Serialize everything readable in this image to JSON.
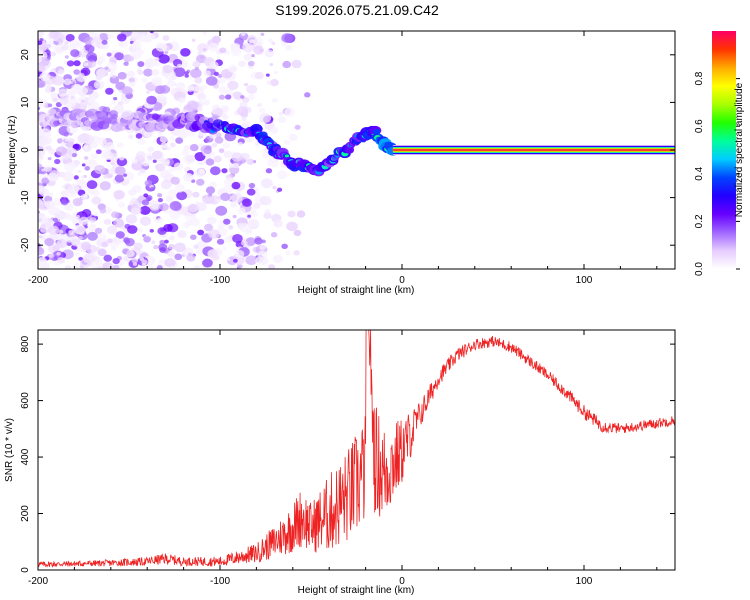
{
  "figure": {
    "title": "S199.2026.075.21.09.C42"
  },
  "chart_data": [
    {
      "type": "heatmap",
      "title": "S199.2026.075.21.09.C42",
      "xlabel": "Height of straight line (km)",
      "ylabel": "Frequency (Hz)",
      "xlim": [
        -200,
        150
      ],
      "ylim": [
        -25,
        25
      ],
      "x_ticks": [
        -200,
        -100,
        0,
        100
      ],
      "x_tick_labels": [
        "-200",
        "-100",
        "0",
        "100"
      ],
      "y_ticks": [
        -20,
        -10,
        0,
        10,
        20
      ],
      "y_tick_labels": [
        "-20",
        "-10",
        "0",
        "10",
        "20"
      ],
      "colorbar": {
        "label": "Normalized spectral amplitude",
        "range": [
          0,
          1
        ],
        "ticks": [
          0,
          0.2,
          0.4,
          0.6,
          0.8
        ],
        "tick_labels": [
          "0.0",
          "0.2",
          "0.4",
          "0.6",
          "0.8"
        ],
        "colormap": [
          "#ffffff",
          "#e6ccff",
          "#a066ff",
          "#6600ff",
          "#2200ff",
          "#0044ff",
          "#00ccff",
          "#00ff99",
          "#22ff00",
          "#aaff00",
          "#ffff00",
          "#ffaa00",
          "#ff3300",
          "#ff0066"
        ]
      },
      "ridge": {
        "description_x_km": [
          -200,
          -150,
          -110,
          -100,
          -90,
          -80,
          -75,
          -70,
          -65,
          -60,
          -55,
          -50,
          -45,
          -40,
          -35,
          -30,
          -25,
          -20,
          -15,
          -10,
          -5,
          0,
          20,
          60,
          100,
          150
        ],
        "frequency_hz": [
          7,
          6,
          6,
          5,
          4,
          4,
          2,
          0,
          -1,
          -3,
          -3,
          -4,
          -4,
          -3,
          -1,
          0,
          2,
          3,
          4,
          1,
          0,
          0,
          0,
          0,
          0,
          0
        ],
        "amplitude": [
          0.1,
          0.12,
          0.2,
          0.25,
          0.3,
          0.3,
          0.35,
          0.3,
          0.3,
          0.32,
          0.3,
          0.3,
          0.28,
          0.25,
          0.3,
          0.3,
          0.32,
          0.35,
          0.3,
          0.4,
          0.5,
          0.95,
          0.98,
          0.98,
          0.98,
          0.98
        ]
      },
      "noise_region_km": [
        -200,
        -90
      ]
    },
    {
      "type": "line",
      "xlabel": "Height of straight line (km)",
      "ylabel": "SNR (10 * v/v)",
      "xlim": [
        -200,
        150
      ],
      "ylim": [
        0,
        850
      ],
      "x_ticks": [
        -200,
        -100,
        0,
        100
      ],
      "x_tick_labels": [
        "-200",
        "-100",
        "0",
        "100"
      ],
      "y_ticks": [
        0,
        200,
        400,
        600,
        800
      ],
      "y_tick_labels": [
        "0",
        "200",
        "400",
        "600",
        "800"
      ],
      "line_color": "#ee2222",
      "series": [
        {
          "name": "SNR",
          "x": [
            -200,
            -180,
            -160,
            -140,
            -130,
            -120,
            -100,
            -90,
            -80,
            -70,
            -60,
            -55,
            -50,
            -40,
            -30,
            -25,
            -20,
            -18,
            -15,
            -10,
            0,
            10,
            20,
            30,
            40,
            50,
            60,
            70,
            80,
            90,
            100,
            110,
            120,
            130,
            140,
            150
          ],
          "y": [
            20,
            22,
            25,
            30,
            40,
            30,
            30,
            45,
            60,
            100,
            150,
            190,
            150,
            200,
            260,
            300,
            360,
            800,
            400,
            340,
            420,
            550,
            680,
            760,
            800,
            810,
            790,
            740,
            690,
            630,
            560,
            510,
            500,
            510,
            520,
            530
          ],
          "noise_amplitude": [
            10,
            10,
            12,
            15,
            20,
            15,
            18,
            25,
            35,
            60,
            90,
            110,
            90,
            140,
            170,
            190,
            200,
            60,
            200,
            180,
            120,
            50,
            30,
            25,
            20,
            20,
            20,
            20,
            20,
            22,
            25,
            22,
            18,
            18,
            18,
            18
          ]
        }
      ]
    }
  ]
}
